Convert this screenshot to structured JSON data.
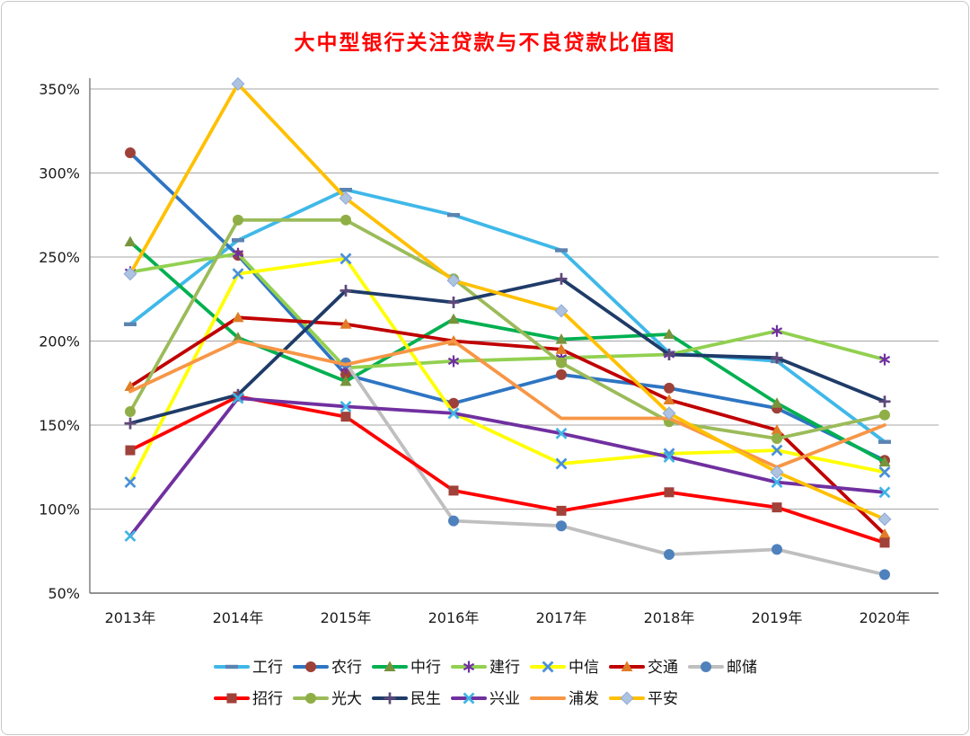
{
  "chart_data": {
    "type": "line",
    "title": "大中型银行关注贷款与不良贷款比值图",
    "title_color": "#FF0000",
    "categories": [
      "2013年",
      "2014年",
      "2015年",
      "2016年",
      "2017年",
      "2018年",
      "2019年",
      "2020年"
    ],
    "y_axis": {
      "ticks": [
        "350%",
        "300%",
        "250%",
        "200%",
        "150%",
        "100%",
        "50%"
      ],
      "max": 350,
      "min": 50,
      "step": 50,
      "unit": "percent"
    },
    "grid": true,
    "legend_position": "bottom",
    "legend_rows": [
      [
        "工行",
        "农行",
        "中行",
        "建行",
        "中信",
        "交通",
        "邮储"
      ],
      [
        "招行",
        "光大",
        "民生",
        "兴业",
        "浦发",
        "平安"
      ]
    ],
    "series": [
      {
        "name": "工行",
        "color": "#3FB8E9",
        "marker": "dash",
        "marker_color": "#5B84B1",
        "values": [
          210,
          260,
          290,
          275,
          254,
          193,
          188,
          140
        ]
      },
      {
        "name": "农行",
        "color": "#2E75C3",
        "marker": "circle",
        "marker_color": "#9E4138",
        "values": [
          312,
          251,
          180,
          163,
          180,
          172,
          160,
          129
        ]
      },
      {
        "name": "中行",
        "color": "#00B050",
        "marker": "triangle",
        "marker_color": "#77933C",
        "values": [
          259,
          202,
          176,
          213,
          201,
          204,
          163,
          128
        ]
      },
      {
        "name": "建行",
        "color": "#92D050",
        "marker": "asterisk",
        "marker_color": "#7030A0",
        "values": [
          241,
          252,
          184,
          188,
          190,
          192,
          206,
          189
        ]
      },
      {
        "name": "中信",
        "color": "#FFFF00",
        "marker": "x",
        "marker_color": "#4A90D9",
        "values": [
          116,
          240,
          249,
          157,
          127,
          133,
          135,
          122
        ]
      },
      {
        "name": "交通",
        "color": "#C00000",
        "marker": "triangle",
        "marker_color": "#E07C28",
        "values": [
          173,
          214,
          210,
          200,
          195,
          165,
          147,
          85
        ]
      },
      {
        "name": "邮储",
        "color": "#BFBFBF",
        "marker": "circle",
        "marker_color": "#4F81BD",
        "values": [
          null,
          null,
          187,
          93,
          90,
          73,
          76,
          61
        ]
      },
      {
        "name": "招行",
        "color": "#FF0000",
        "marker": "square",
        "marker_color": "#A0413A",
        "values": [
          135,
          167,
          155,
          111,
          99,
          110,
          101,
          80
        ]
      },
      {
        "name": "光大",
        "color": "#9BBB59",
        "marker": "circle",
        "marker_color": "#8FAF46",
        "values": [
          158,
          272,
          272,
          237,
          187,
          152,
          142,
          156
        ]
      },
      {
        "name": "民生",
        "color": "#1F3B68",
        "marker": "plus",
        "marker_color": "#5F497A",
        "values": [
          151,
          168,
          230,
          223,
          237,
          192,
          190,
          164
        ]
      },
      {
        "name": "兴业",
        "color": "#7030A0",
        "marker": "x",
        "marker_color": "#40B4E5",
        "values": [
          84,
          166,
          161,
          157,
          145,
          131,
          116,
          110
        ]
      },
      {
        "name": "浦发",
        "color": "#F79646",
        "marker": "none",
        "marker_color": "#F79646",
        "values": [
          170,
          200,
          186,
          200,
          154,
          154,
          125,
          150
        ]
      },
      {
        "name": "平安",
        "color": "#FFC000",
        "marker": "diamond",
        "marker_color": "#AEC3E0",
        "values": [
          240,
          353,
          285,
          236,
          218,
          157,
          122,
          94
        ]
      }
    ]
  }
}
